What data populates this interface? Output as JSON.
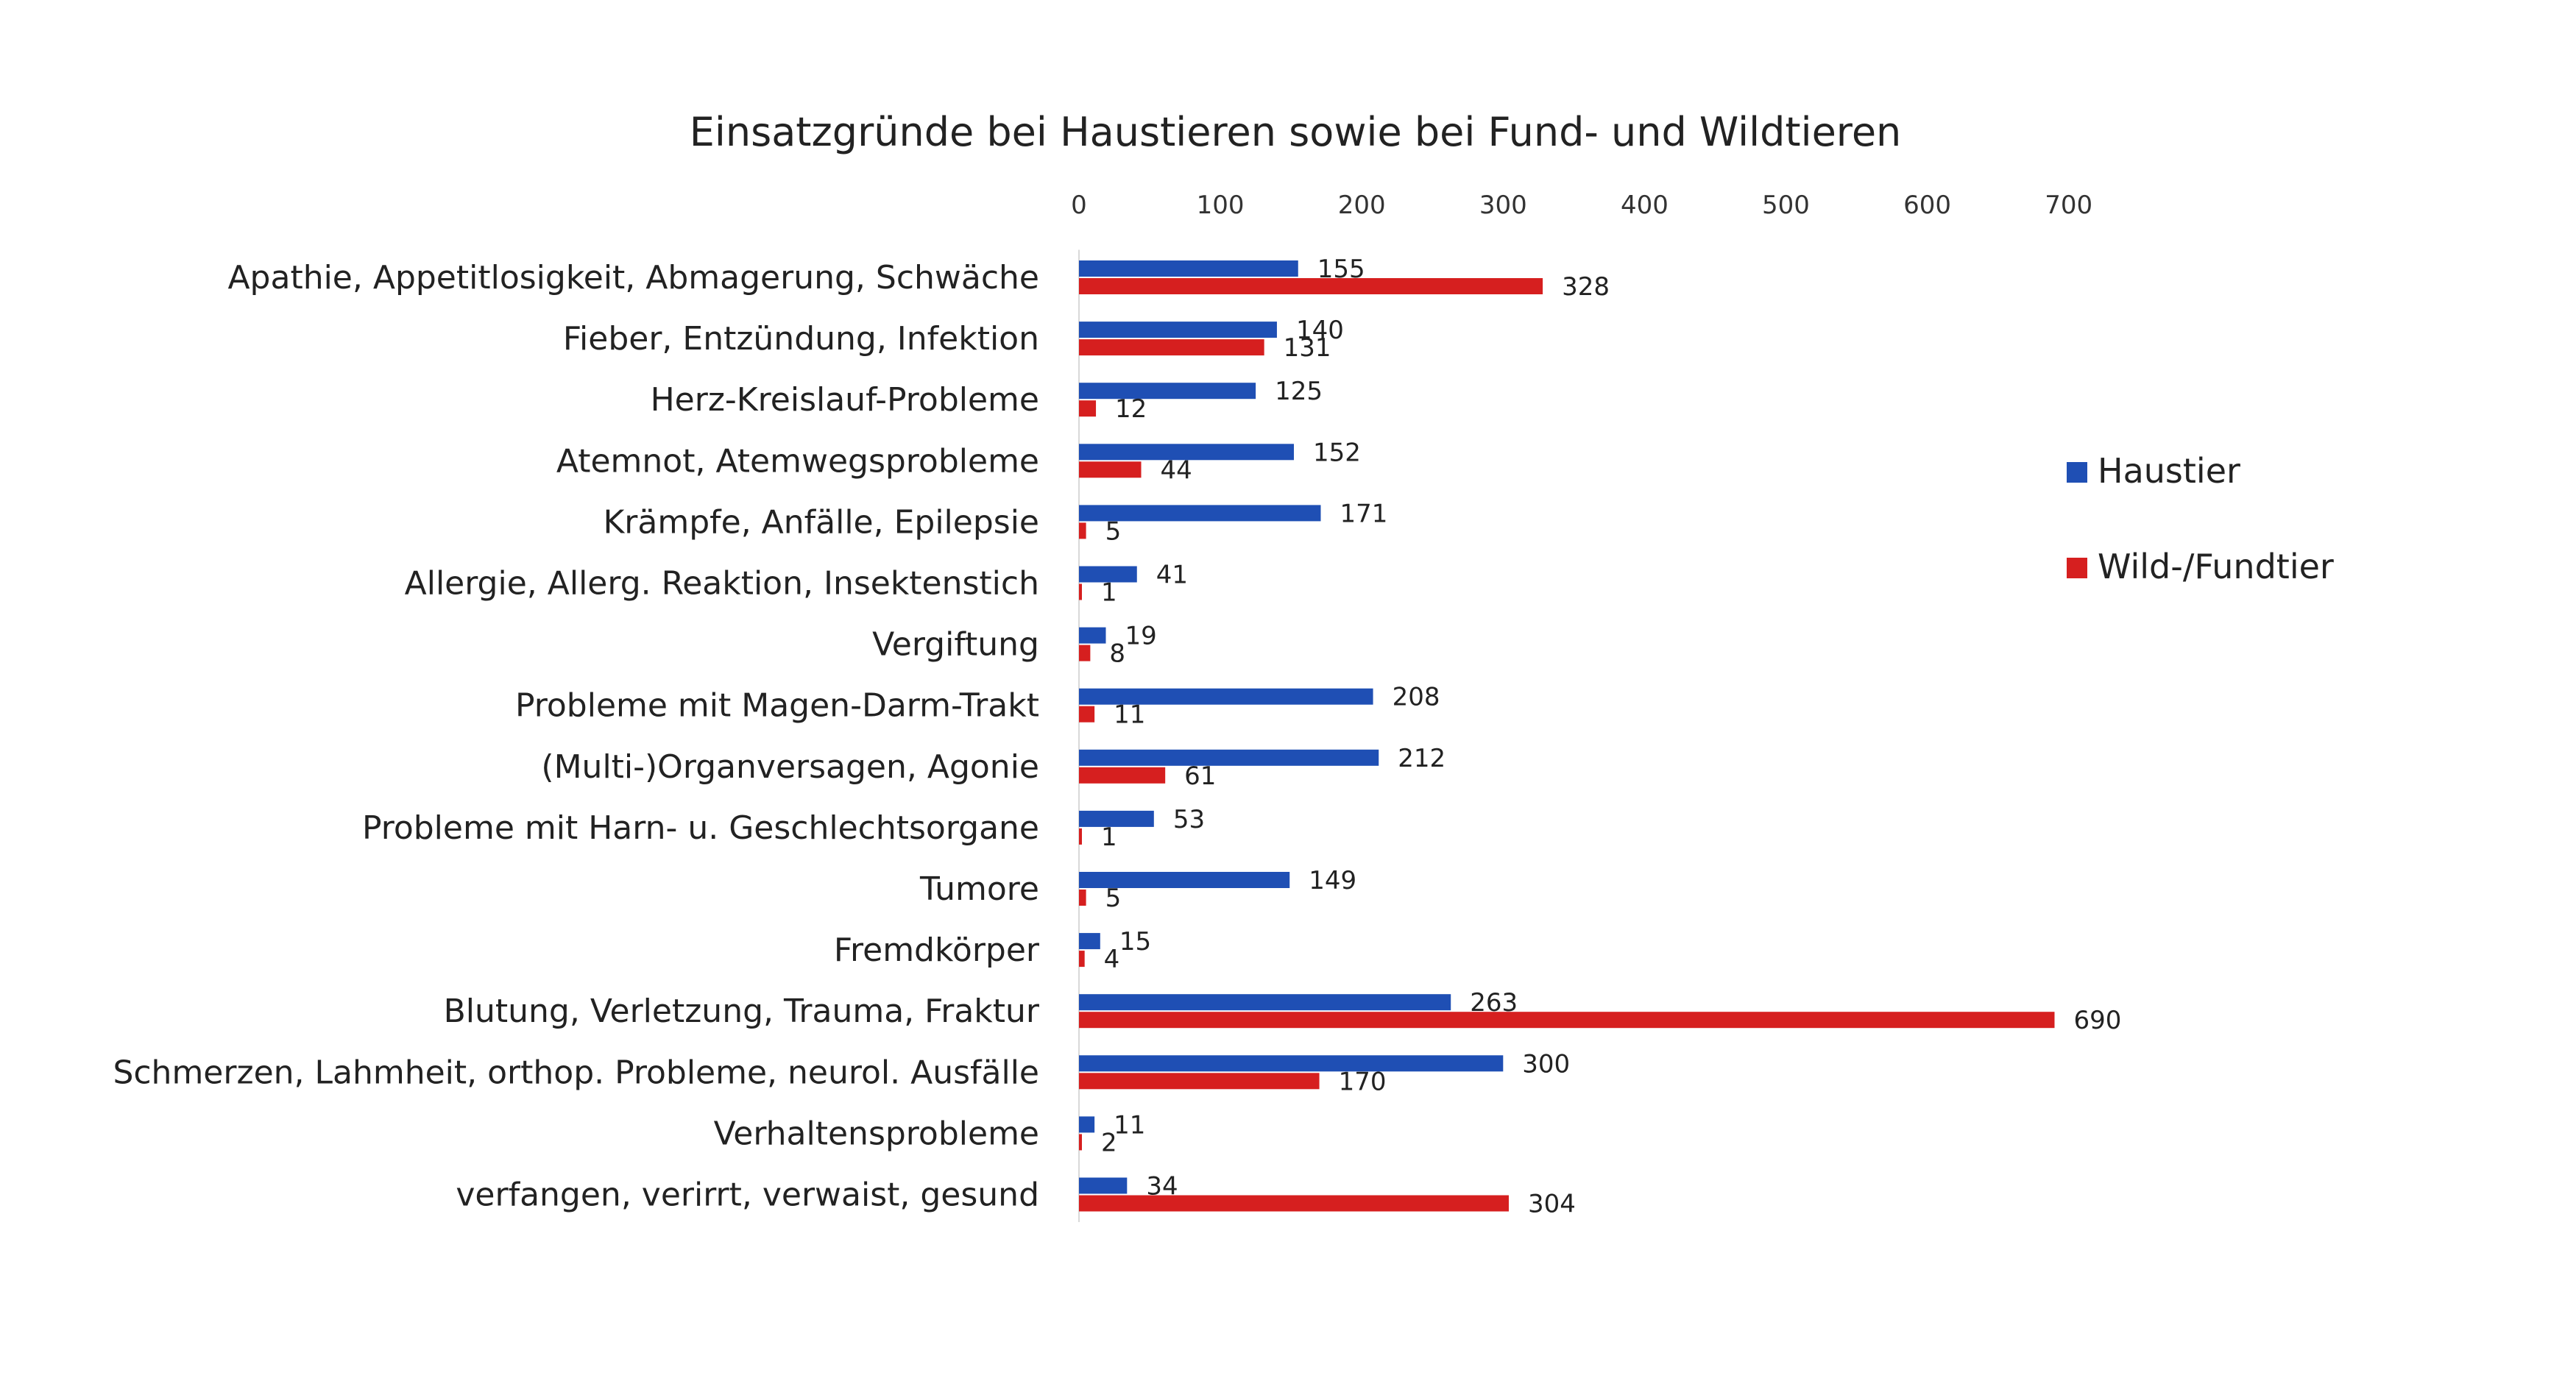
{
  "chart_data": {
    "type": "bar",
    "orientation": "horizontal",
    "title": "Einsatzgründe bei Haustieren sowie bei Fund- und Wildtieren",
    "xlabel": "",
    "ylabel": "",
    "x_axis_position": "top",
    "xlim": [
      0,
      700
    ],
    "xticks": [
      0,
      100,
      200,
      300,
      400,
      500,
      600,
      700
    ],
    "legend_position": "right",
    "categories": [
      "Apathie, Appetitlosigkeit, Abmagerung, Schwäche",
      "Fieber, Entzündung, Infektion",
      "Herz-Kreislauf-Probleme",
      "Atemnot, Atemwegsprobleme",
      "Krämpfe, Anfälle, Epilepsie",
      "Allergie, Allerg. Reaktion, Insektenstich",
      "Vergiftung",
      "Probleme mit Magen-Darm-Trakt",
      "(Multi-)Organversagen, Agonie",
      "Probleme mit Harn- u. Geschlechtsorgane",
      "Tumore",
      "Fremdkörper",
      "Blutung, Verletzung, Trauma, Fraktur",
      "Schmerzen, Lahmheit, orthop. Probleme, neurol. Ausfälle",
      "Verhaltensprobleme",
      "verfangen, verirrt, verwaist, gesund"
    ],
    "series": [
      {
        "name": "Haustier",
        "color": "#1f4fb4",
        "values": [
          155,
          140,
          125,
          152,
          171,
          41,
          19,
          208,
          212,
          53,
          149,
          15,
          263,
          300,
          11,
          34
        ]
      },
      {
        "name": "Wild-/Fundtier",
        "color": "#d61f1f",
        "values": [
          328,
          131,
          12,
          44,
          5,
          1,
          8,
          11,
          61,
          1,
          5,
          4,
          690,
          170,
          2,
          304
        ]
      }
    ]
  }
}
